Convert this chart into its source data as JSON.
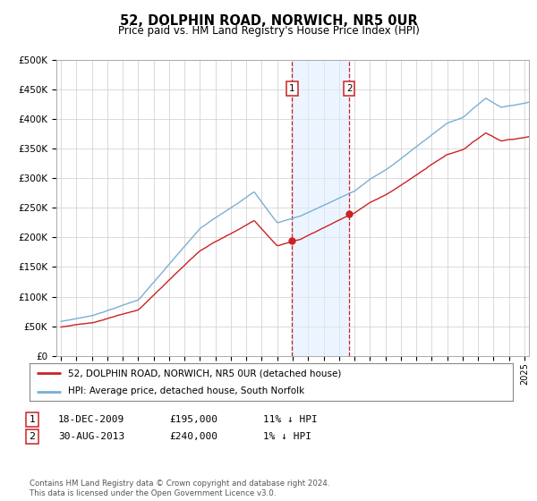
{
  "title": "52, DOLPHIN ROAD, NORWICH, NR5 0UR",
  "subtitle": "Price paid vs. HM Land Registry's House Price Index (HPI)",
  "ylim": [
    0,
    500000
  ],
  "yticks": [
    0,
    50000,
    100000,
    150000,
    200000,
    250000,
    300000,
    350000,
    400000,
    450000,
    500000
  ],
  "ytick_labels": [
    "£0",
    "£50K",
    "£100K",
    "£150K",
    "£200K",
    "£250K",
    "£300K",
    "£350K",
    "£400K",
    "£450K",
    "£500K"
  ],
  "sale1_date_num": 2009.96,
  "sale1_price": 195000,
  "sale2_date_num": 2013.66,
  "sale2_price": 240000,
  "hpi_color": "#7bafd4",
  "price_color": "#cc2222",
  "vline_color": "#cc2222",
  "shade_color": "#ddeeff",
  "legend_label1": "52, DOLPHIN ROAD, NORWICH, NR5 0UR (detached house)",
  "legend_label2": "HPI: Average price, detached house, South Norfolk",
  "footer": "Contains HM Land Registry data © Crown copyright and database right 2024.\nThis data is licensed under the Open Government Licence v3.0.",
  "table_row1": [
    "1",
    "18-DEC-2009",
    "£195,000",
    "11% ↓ HPI"
  ],
  "table_row2": [
    "2",
    "30-AUG-2013",
    "£240,000",
    "1% ↓ HPI"
  ],
  "bg_color": "#ffffff",
  "grid_color": "#cccccc",
  "xlim_left": 1994.7,
  "xlim_right": 2025.3
}
